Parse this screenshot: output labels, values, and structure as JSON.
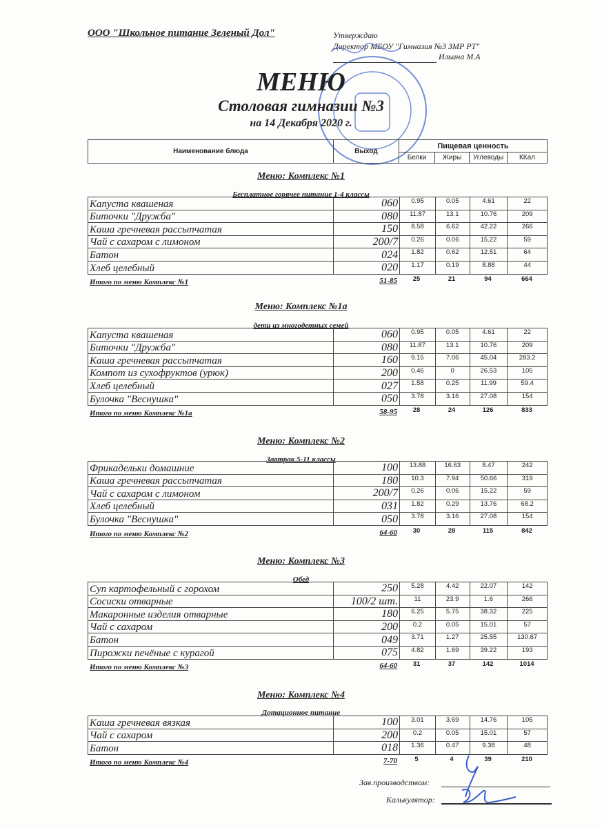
{
  "header": {
    "organization": "ООО \"Школьное питание Зеленый Дол\"",
    "approval": [
      "Утверждаю",
      "Директор МБОУ \"Гимназия №3 ЗМР РТ\"",
      "Ильина М.А"
    ],
    "title": "МЕНЮ",
    "subtitle": "Столовая гимназии №3",
    "date": "на 14 Декабря 2020 г."
  },
  "table_header": {
    "name": "Наименование блюда",
    "output": "Выход",
    "nutrition": "Пищевая ценность",
    "columns": [
      "Белки",
      "Жиры",
      "Углеводы",
      "ККал"
    ]
  },
  "stamp_color": "#3a5fc8",
  "sections": [
    {
      "title": "Меню: Комплекс №1",
      "subtitle": "Бесплатное горячее питание  1-4 классы",
      "rows": [
        [
          "Капуста квашеная",
          "060",
          "0.95",
          "0.05",
          "4.61",
          "22"
        ],
        [
          "Биточки   \"Дружба\"",
          "080",
          "11.87",
          "13.1",
          "10.76",
          "209"
        ],
        [
          "Каша гречневая рассыпчатая",
          "150",
          "8.58",
          "6.62",
          "42.22",
          "266"
        ],
        [
          "Чай с сахаром с лимоном",
          "200/7",
          "0.26",
          "0.06",
          "15.22",
          "59"
        ],
        [
          "Батон",
          "024",
          "1.82",
          "0.62",
          "12.51",
          "64"
        ],
        [
          "Хлеб  целебный",
          "020",
          "1.17",
          "0.19",
          "8.88",
          "44"
        ]
      ],
      "total": [
        "Итого по меню Комплекс №1",
        "51-85",
        "25",
        "21",
        "94",
        "664"
      ]
    },
    {
      "title": "Меню: Комплекс №1а",
      "subtitle": "дети из многодетных семей",
      "rows": [
        [
          "Капуста квашеная",
          "060",
          "0.95",
          "0.05",
          "4.61",
          "22"
        ],
        [
          "Биточки   \"Дружба\"",
          "080",
          "11.87",
          "13.1",
          "10.76",
          "209"
        ],
        [
          "Каша гречневая рассыпчатая",
          "160",
          "9.15",
          "7.06",
          "45.04",
          "283.2"
        ],
        [
          "Компот из сухофруктов (урюк)",
          "200",
          "0.46",
          "0",
          "26.53",
          "105"
        ],
        [
          "Хлеб  целебный",
          "027",
          "1.58",
          "0.25",
          "11.99",
          "59.4"
        ],
        [
          "Булочка \"Веснушка\"",
          "050",
          "3.78",
          "3.16",
          "27.08",
          "154"
        ]
      ],
      "total": [
        "Итого по меню Комплекс №1а",
        "58-95",
        "28",
        "24",
        "126",
        "833"
      ]
    },
    {
      "title": "Меню: Комплекс №2",
      "subtitle": "Завтрак 5-11 классы",
      "rows": [
        [
          "Фрикадельки домашние",
          "100",
          "13.88",
          "16.63",
          "8.47",
          "242"
        ],
        [
          "Каша гречневая рассыпчатая",
          "180",
          "10.3",
          "7.94",
          "50.66",
          "319"
        ],
        [
          "Чай с сахаром с лимоном",
          "200/7",
          "0.26",
          "0.06",
          "15.22",
          "59"
        ],
        [
          "Хлеб  целебный",
          "031",
          "1.82",
          "0.29",
          "13.76",
          "68.2"
        ],
        [
          "Булочка \"Веснушка\"",
          "050",
          "3.78",
          "3.16",
          "27.08",
          "154"
        ]
      ],
      "total": [
        "Итого по меню Комплекс №2",
        "64-60",
        "30",
        "28",
        "115",
        "842"
      ]
    },
    {
      "title": "Меню: Комплекс №3",
      "subtitle": "Обед",
      "rows": [
        [
          "Суп картофельный с горохом",
          "250",
          "5.28",
          "4.42",
          "22.07",
          "142"
        ],
        [
          "Сосиски отварные",
          "100/2 шт.",
          "11",
          "23.9",
          "1.6",
          "266"
        ],
        [
          "Макаронные изделия отварные",
          "180",
          "6.25",
          "5.75",
          "38.32",
          "225"
        ],
        [
          "Чай с сахаром",
          "200",
          "0.2",
          "0.05",
          "15.01",
          "57"
        ],
        [
          "Батон",
          "049",
          "3.71",
          "1.27",
          "25.55",
          "130.67"
        ],
        [
          "Пирожки печёные с курагой",
          "075",
          "4.82",
          "1.69",
          "39.22",
          "193"
        ]
      ],
      "total": [
        "Итого по меню Комплекс №3",
        "64-60",
        "31",
        "37",
        "142",
        "1014"
      ]
    },
    {
      "title": "Меню: Комплекс №4",
      "subtitle": "Дотационное питание",
      "rows": [
        [
          "Каша гречневая вязкая",
          "100",
          "3.01",
          "3.69",
          "14.76",
          "105"
        ],
        [
          "Чай с сахаром",
          "200",
          "0.2",
          "0.05",
          "15.01",
          "57"
        ],
        [
          "Батон",
          "018",
          "1.36",
          "0.47",
          "9.38",
          "48"
        ]
      ],
      "total": [
        "Итого по меню Комплекс №4",
        "7-70",
        "5",
        "4",
        "39",
        "210"
      ]
    }
  ],
  "footer": {
    "production_head": "Зав.производством:",
    "calculator": "Калькулятор:"
  }
}
